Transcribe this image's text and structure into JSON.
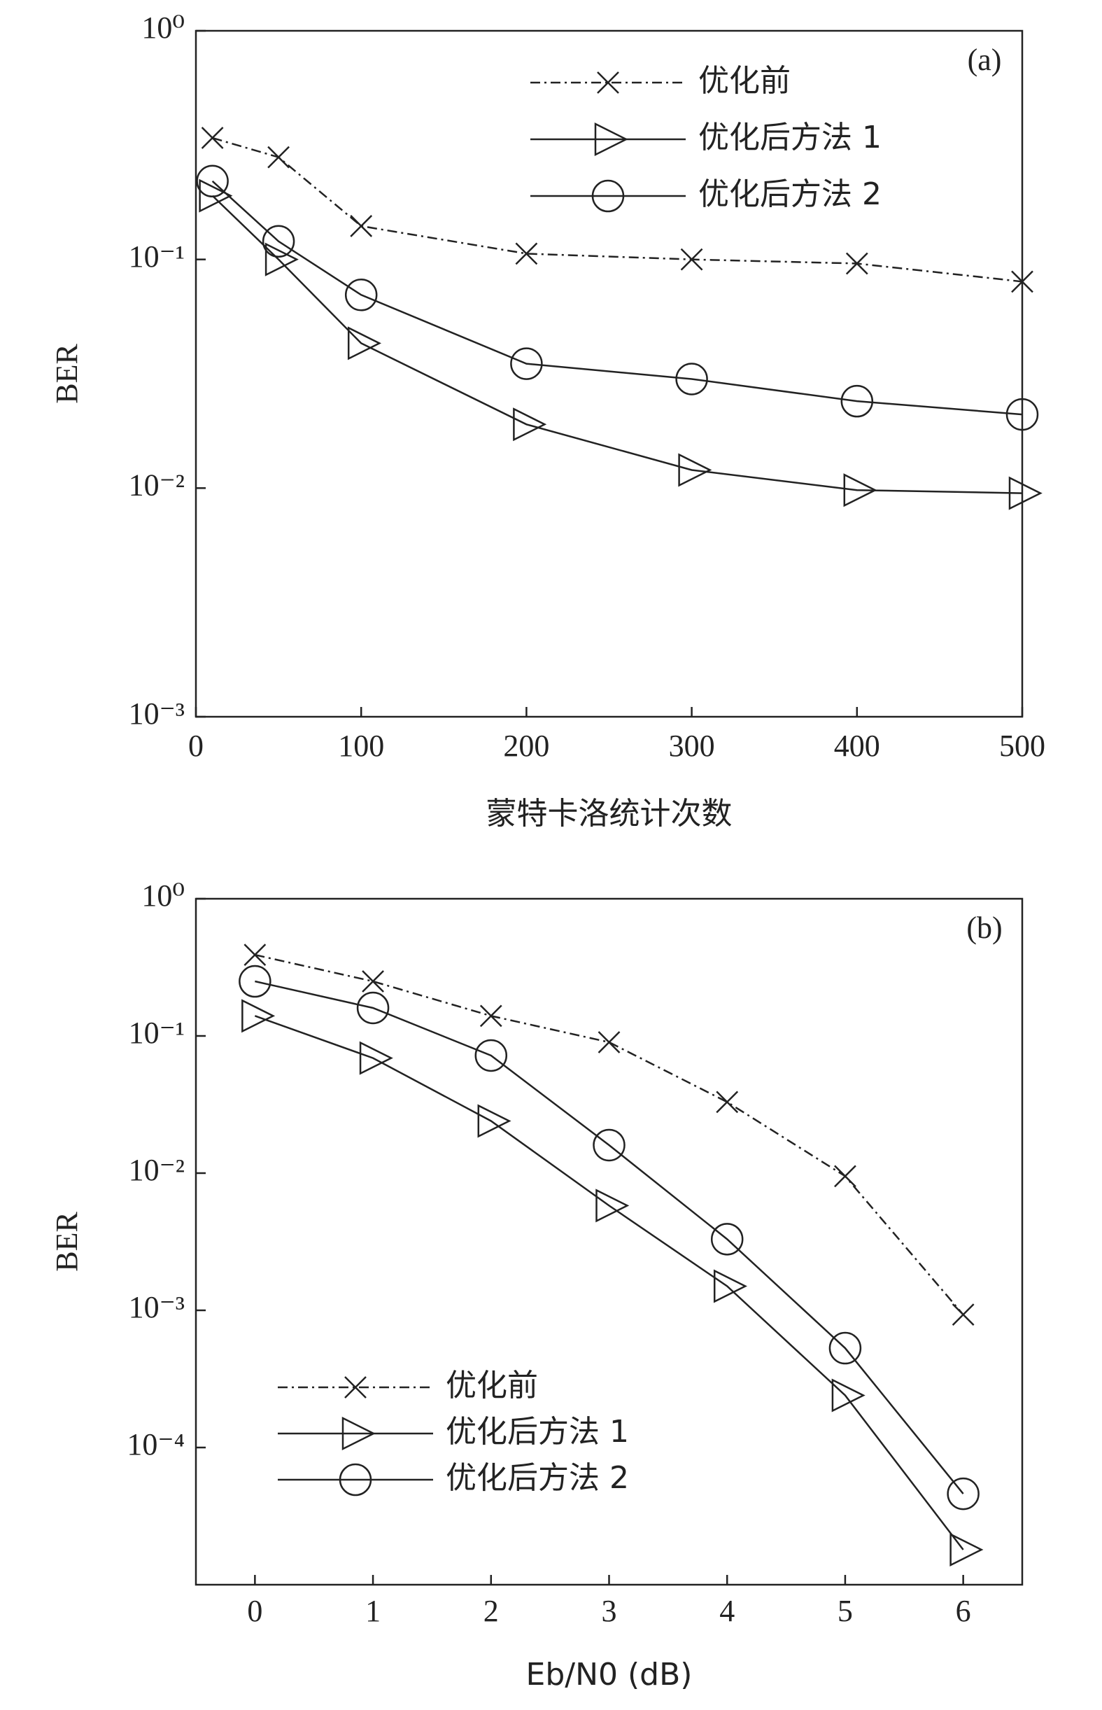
{
  "chart_data": [
    {
      "type": "line",
      "panel_label": "(a)",
      "x_label": "蒙特卡洛统计次数",
      "y_label": "BER",
      "x": [
        10,
        50,
        100,
        200,
        300,
        400,
        500
      ],
      "xlim": [
        0,
        500
      ],
      "xticks": [
        0,
        100,
        200,
        300,
        400,
        500
      ],
      "ylim": [
        0.001,
        1
      ],
      "log_y": true,
      "yticks": [
        {
          "value": 1,
          "label": "10⁰"
        },
        {
          "value": 0.1,
          "label": "10⁻¹"
        },
        {
          "value": 0.01,
          "label": "10⁻²"
        },
        {
          "value": 0.001,
          "label": "10⁻³"
        }
      ],
      "legend": "upper right",
      "series": [
        {
          "name": "优化前",
          "color": "#222222",
          "marker": "x",
          "line_style": "dashdot",
          "values": [
            0.34,
            0.28,
            0.14,
            0.106,
            0.1,
            0.096,
            0.08
          ]
        },
        {
          "name": "优化后方法 1",
          "color": "#222222",
          "marker": "triangle-right",
          "line_style": "solid",
          "values": [
            0.19,
            0.1,
            0.043,
            0.019,
            0.012,
            0.0098,
            0.0095
          ]
        },
        {
          "name": "优化后方法 2",
          "color": "#222222",
          "marker": "circle",
          "line_style": "solid",
          "values": [
            0.22,
            0.12,
            0.07,
            0.035,
            0.03,
            0.024,
            0.021
          ]
        }
      ]
    },
    {
      "type": "line",
      "panel_label": "(b)",
      "x_label": "Eb/N0 (dB)",
      "y_label": "BER",
      "x": [
        0,
        1,
        2,
        3,
        4,
        5,
        6
      ],
      "xlim": [
        -0.5,
        6.5
      ],
      "xticks": [
        0,
        1,
        2,
        3,
        4,
        5,
        6
      ],
      "ylim": [
        1e-05,
        1
      ],
      "log_y": true,
      "yticks": [
        {
          "value": 1,
          "label": "10⁰"
        },
        {
          "value": 0.1,
          "label": "10⁻¹"
        },
        {
          "value": 0.01,
          "label": "10⁻²"
        },
        {
          "value": 0.001,
          "label": "10⁻³"
        },
        {
          "value": 0.0001,
          "label": "10⁻⁴"
        }
      ],
      "legend": "lower left",
      "series": [
        {
          "name": "优化前",
          "color": "#222222",
          "marker": "x",
          "line_style": "dashdot",
          "values": [
            0.39,
            0.25,
            0.14,
            0.09,
            0.033,
            0.0095,
            0.00093
          ]
        },
        {
          "name": "优化后方法 1",
          "color": "#222222",
          "marker": "triangle-right",
          "line_style": "solid",
          "values": [
            0.14,
            0.069,
            0.024,
            0.0058,
            0.0015,
            0.00024,
            1.8e-05
          ]
        },
        {
          "name": "优化后方法 2",
          "color": "#222222",
          "marker": "circle",
          "line_style": "solid",
          "values": [
            0.25,
            0.16,
            0.072,
            0.016,
            0.0033,
            0.00053,
            4.6e-05
          ]
        }
      ]
    }
  ]
}
